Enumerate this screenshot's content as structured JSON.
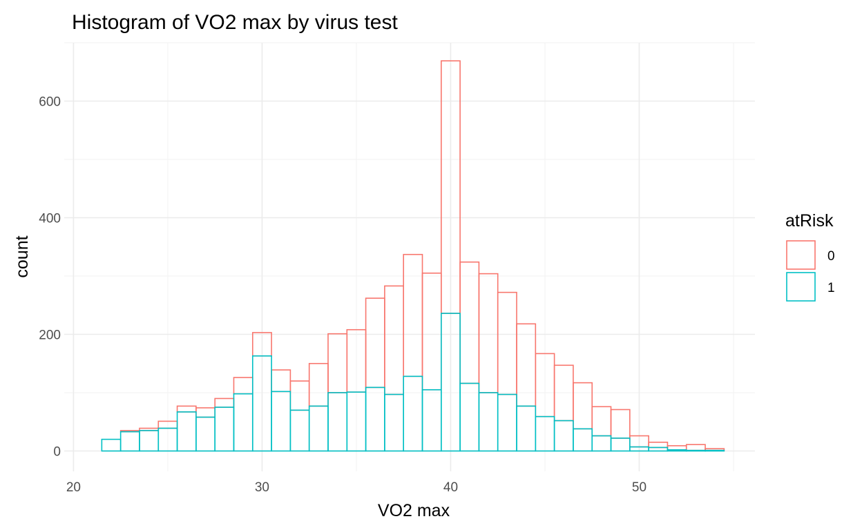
{
  "chart_data": {
    "type": "bar",
    "title": "Histogram of VO2 max by virus test",
    "xlabel": "VO2 max",
    "ylabel": "count",
    "xlim": [
      20,
      55
    ],
    "ylim": [
      0,
      700
    ],
    "x_ticks": [
      "20",
      "30",
      "40",
      "50"
    ],
    "y_ticks": [
      "0",
      "200",
      "400",
      "600"
    ],
    "grid": true,
    "bin_width": 1,
    "bin_centers": [
      22,
      23,
      24,
      25,
      26,
      27,
      28,
      29,
      30,
      31,
      32,
      33,
      34,
      35,
      36,
      37,
      38,
      39,
      40,
      41,
      42,
      43,
      44,
      45,
      46,
      47,
      48,
      49,
      50,
      51,
      52,
      53,
      54
    ],
    "stacked": true,
    "legend": {
      "title": "atRisk",
      "position": "right"
    },
    "series": [
      {
        "name": "0",
        "color": "#F8766D",
        "values": [
          0,
          2,
          4,
          12,
          10,
          16,
          15,
          28,
          40,
          37,
          50,
          73,
          101,
          107,
          153,
          186,
          209,
          200,
          433,
          208,
          204,
          175,
          141,
          108,
          95,
          79,
          50,
          49,
          19,
          9,
          7,
          10,
          3
        ]
      },
      {
        "name": "1",
        "color": "#00BFC4",
        "values": [
          20,
          33,
          35,
          39,
          67,
          58,
          75,
          98,
          163,
          102,
          70,
          77,
          100,
          101,
          109,
          97,
          128,
          105,
          236,
          116,
          100,
          97,
          77,
          59,
          52,
          38,
          26,
          22,
          7,
          6,
          2,
          1,
          1
        ]
      }
    ]
  }
}
